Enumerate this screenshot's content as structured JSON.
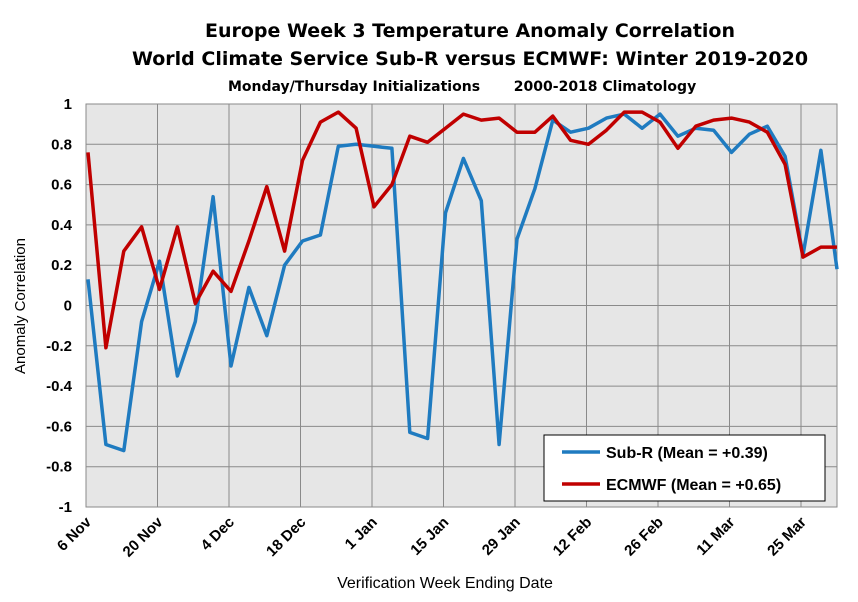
{
  "chart_data": {
    "type": "line",
    "title": "Europe Week 3 Temperature Anomaly Correlation",
    "subtitle": "World Climate Service Sub-R versus ECMWF: Winter 2019-2020",
    "subtitle2_left": "Monday/Thursday Initializations",
    "subtitle2_right": "2000-2018 Climatology",
    "xlabel": "Verification Week Ending Date",
    "ylabel": "Anomaly Correlation",
    "x_tick_labels": [
      "6 Nov",
      "20 Nov",
      "4 Dec",
      "18 Dec",
      "1 Jan",
      "15 Jan",
      "29 Jan",
      "12 Feb",
      "26 Feb",
      "11 Mar",
      "25 Mar"
    ],
    "y_tick_labels": [
      "1",
      "0.8",
      "0.6",
      "0.4",
      "0.2",
      "0",
      "-0.2",
      "-0.4",
      "-0.6",
      "-0.8",
      "-1"
    ],
    "ylim": [
      -1,
      1
    ],
    "grid": true,
    "legend_position": "bottom-right",
    "series": [
      {
        "name": "Sub-R",
        "legend_label": "Sub-R   (Mean = +0.39)",
        "color": "#1f7bc0",
        "values": [
          0.13,
          -0.69,
          -0.72,
          -0.08,
          0.22,
          -0.35,
          -0.08,
          0.54,
          -0.3,
          0.09,
          -0.15,
          0.2,
          0.32,
          0.35,
          0.79,
          0.8,
          0.79,
          0.78,
          -0.63,
          -0.66,
          0.46,
          0.73,
          0.52,
          -0.69,
          0.33,
          0.58,
          0.92,
          0.86,
          0.88,
          0.93,
          0.95,
          0.88,
          0.95,
          0.84,
          0.88,
          0.87,
          0.76,
          0.85,
          0.89,
          0.74,
          0.25,
          0.77,
          0.18
        ]
      },
      {
        "name": "ECMWF",
        "legend_label": "ECMWF (Mean = +0.65)",
        "color": "#c00000",
        "values": [
          0.76,
          -0.21,
          0.27,
          0.39,
          0.08,
          0.39,
          0.01,
          0.17,
          0.07,
          0.32,
          0.59,
          0.27,
          0.72,
          0.91,
          0.96,
          0.88,
          0.49,
          0.6,
          0.84,
          0.81,
          0.88,
          0.95,
          0.92,
          0.93,
          0.86,
          0.86,
          0.94,
          0.82,
          0.8,
          0.87,
          0.96,
          0.96,
          0.91,
          0.78,
          0.89,
          0.92,
          0.93,
          0.91,
          0.86,
          0.7,
          0.24,
          0.29,
          0.29
        ]
      }
    ]
  }
}
